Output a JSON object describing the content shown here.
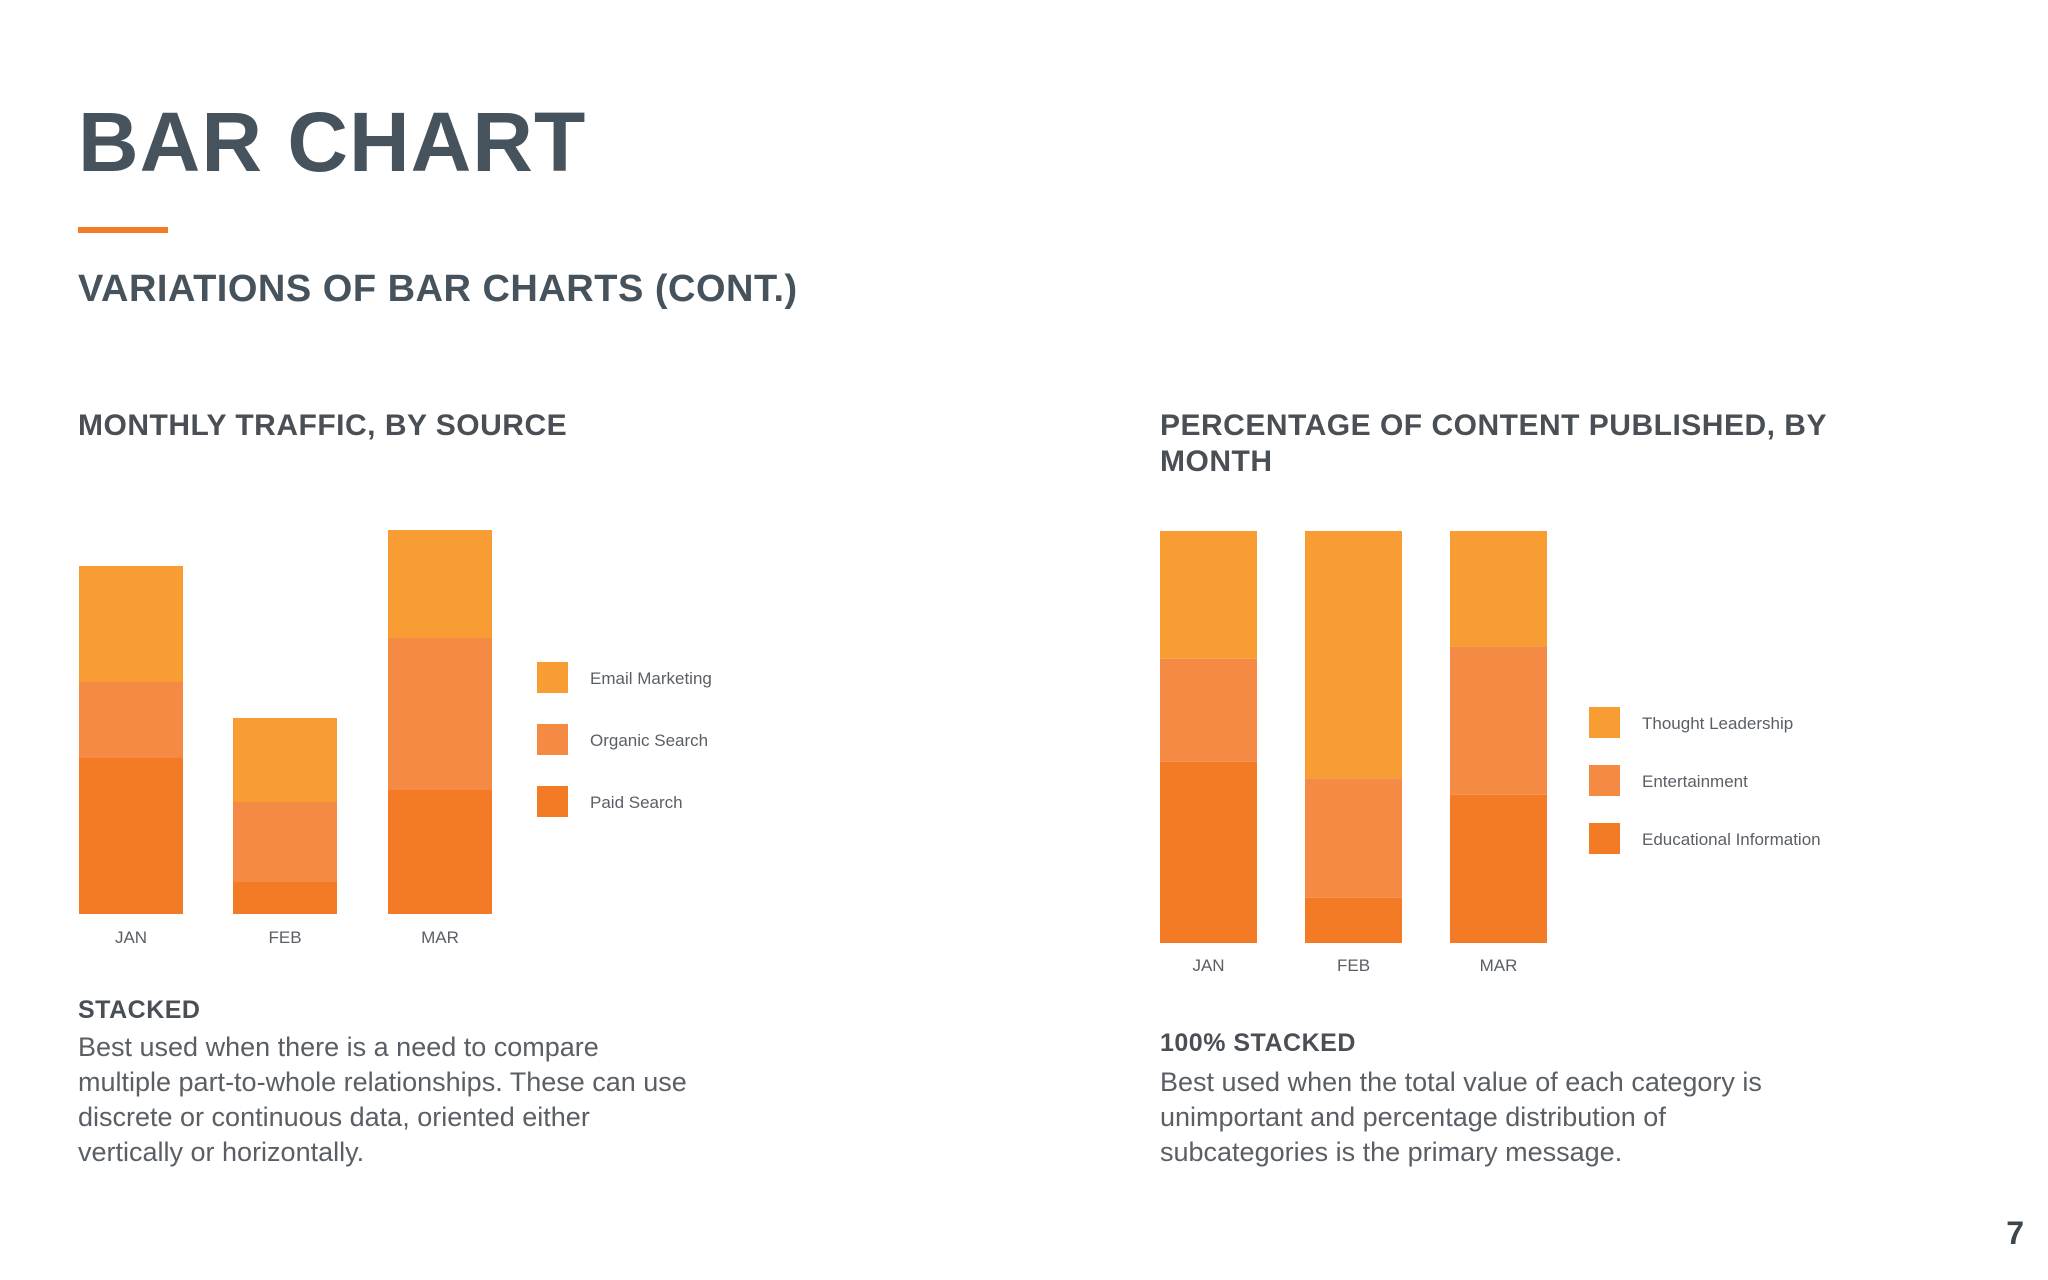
{
  "slide": {
    "title": "BAR CHART",
    "subtitle": "VARIATIONS OF BAR CHARTS (CONT.)",
    "page_number": "7",
    "accent_color": "#f47b25"
  },
  "left": {
    "title": "MONTHLY TRAFFIC, BY SOURCE",
    "heading": "STACKED",
    "description": "Best used when there is a need to compare multiple part-to-whole relationships. These can use discrete or continuous data, oriented either vertically or horizontally."
  },
  "right": {
    "title": "PERCENTAGE OF CONTENT PUBLISHED, BY MONTH",
    "heading": "100% STACKED",
    "description": "Best used when the total value of each category is unimportant and percentage distribution of subcategories is the primary message."
  },
  "chart_data": [
    {
      "type": "bar",
      "stacked": true,
      "categories": [
        "JAN",
        "FEB",
        "MAR"
      ],
      "series": [
        {
          "name": "Paid Search",
          "color": "#f47b25",
          "values": [
            39,
            8,
            31
          ]
        },
        {
          "name": "Organic Search",
          "color": "#f58a45",
          "values": [
            19,
            20,
            38
          ]
        },
        {
          "name": "Email Marketing",
          "color": "#f79d33",
          "values": [
            29,
            21,
            27
          ]
        }
      ],
      "legend_order": [
        "Email Marketing",
        "Organic Search",
        "Paid Search"
      ],
      "ylim": [
        0,
        96
      ],
      "grid": false,
      "legend": "right"
    },
    {
      "type": "bar",
      "stacked": true,
      "percent": true,
      "categories": [
        "JAN",
        "FEB",
        "MAR"
      ],
      "series": [
        {
          "name": "Educational Information",
          "color": "#f47b25",
          "values": [
            44,
            11,
            36
          ]
        },
        {
          "name": "Entertainment",
          "color": "#f58a45",
          "values": [
            25,
            29,
            36
          ]
        },
        {
          "name": "Thought Leadership",
          "color": "#f79d33",
          "values": [
            31,
            60,
            28
          ]
        }
      ],
      "legend_order": [
        "Thought Leadership",
        "Entertainment",
        "Educational Information"
      ],
      "ylim": [
        0,
        100
      ],
      "grid": false,
      "legend": "right"
    }
  ]
}
